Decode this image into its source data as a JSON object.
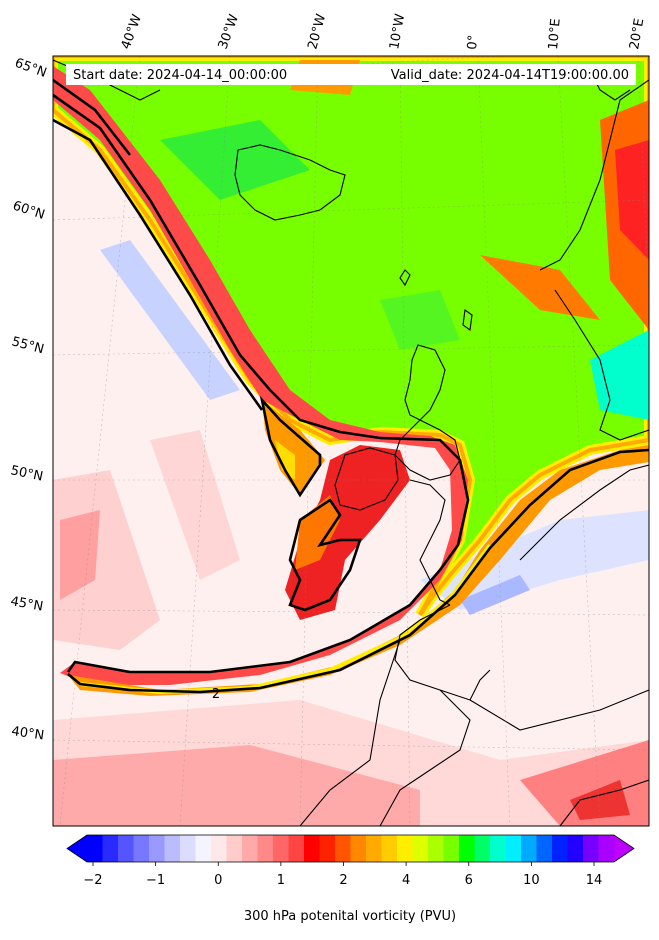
{
  "map": {
    "header": {
      "start_date": "Start date: 2024-04-14_00:00:00",
      "valid_date": "Valid_date: 2024-04-14T19:00:00.00"
    },
    "longitude_labels": [
      "40°W",
      "30°W",
      "20°W",
      "10°W",
      "0°",
      "10°E",
      "20°E"
    ],
    "latitude_labels": [
      "65°N",
      "60°N",
      "55°N",
      "50°N",
      "45°N",
      "40°N"
    ],
    "contour_label": "2"
  },
  "colorbar": {
    "title": "300 hPa potenital vorticity (PVU)",
    "tick_labels": [
      "−2",
      "−1",
      "0",
      "1",
      "2",
      "4",
      "6",
      "10",
      "14"
    ],
    "colors": [
      "#0000ff",
      "#2a2aff",
      "#5555ff",
      "#7777ff",
      "#9999ff",
      "#bbbbff",
      "#dcdcff",
      "#f4f4ff",
      "#ffe8e8",
      "#ffcccc",
      "#ffaaaa",
      "#ff8888",
      "#ff6666",
      "#ff4444",
      "#ff0000",
      "#ff2200",
      "#ff5500",
      "#ff8800",
      "#ffaa00",
      "#ffcc00",
      "#ffee00",
      "#ddff00",
      "#aaff00",
      "#77ff00",
      "#00ff00",
      "#00ff66",
      "#00ffcc",
      "#00eeff",
      "#00aaff",
      "#0066ff",
      "#0022ff",
      "#2200ff",
      "#7700ff",
      "#aa00ff"
    ],
    "extend_low_color": "#0000ff",
    "extend_high_color": "#bb00ff"
  },
  "palette": {
    "low_pv_white": "#fff0f0",
    "pink": "#ffb0b0",
    "red": "#ff5050",
    "orange": "#ff9900",
    "yellow": "#ffee00",
    "green": "#77ff00",
    "bright_green": "#33ee33",
    "cyan": "#00ffee",
    "light_blue": "#ccd6ff"
  }
}
